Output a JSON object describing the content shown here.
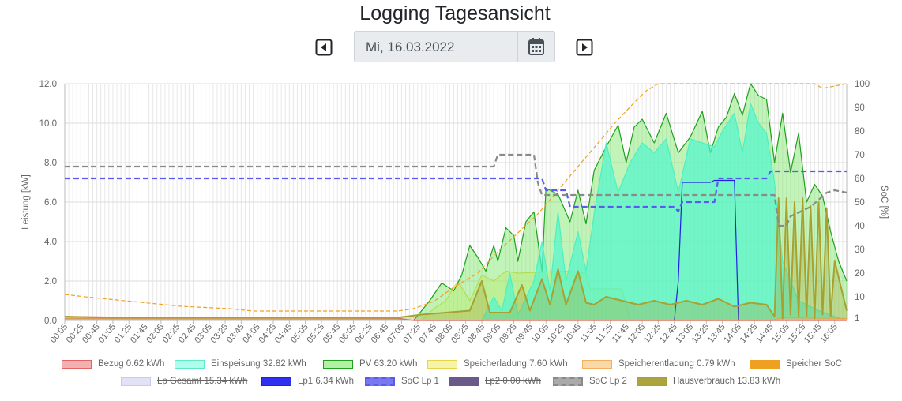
{
  "page": {
    "title": "Logging Tagesansicht"
  },
  "date_nav": {
    "date_value": "Mi, 16.03.2022",
    "prev_icon": "caret-left-square-icon",
    "next_icon": "caret-right-square-icon",
    "calendar_icon": "calendar-icon"
  },
  "chart_data": {
    "type": "area",
    "ylabel": "Leistung [kW]",
    "ylabel_right": "SoC [%]",
    "ylim": [
      0,
      12
    ],
    "ylim_right": [
      0,
      100
    ],
    "yticks": [
      "0.0",
      "2.0",
      "4.0",
      "6.0",
      "8.0",
      "10.0",
      "12.0"
    ],
    "yticks_right": [
      "1",
      "10",
      "20",
      "30",
      "40",
      "50",
      "60",
      "70",
      "80",
      "90",
      "100"
    ],
    "xticks": [
      "00:05",
      "00:25",
      "00:45",
      "01:05",
      "01:25",
      "01:45",
      "02:05",
      "02:25",
      "02:45",
      "03:05",
      "03:25",
      "03:45",
      "04:05",
      "04:25",
      "04:45",
      "05:05",
      "05:25",
      "05:45",
      "06:05",
      "06:25",
      "06:45",
      "07:05",
      "07:25",
      "07:45",
      "08:05",
      "08:25",
      "08:45",
      "09:05",
      "09:25",
      "09:45",
      "10:05",
      "10:25",
      "10:45",
      "11:05",
      "11:25",
      "11:45",
      "12:05",
      "12:25",
      "12:45",
      "13:05",
      "13:25",
      "13:45",
      "14:05",
      "14:25",
      "14:45",
      "15:05",
      "15:25",
      "15:45",
      "16:05"
    ],
    "grid": true,
    "legend_position": "bottom",
    "series": [
      {
        "name": "Bezug 0.62 kWh",
        "color": "#e06666",
        "axis": "left",
        "points": [
          [
            "00:05",
            0.2
          ],
          [
            "02:00",
            0.15
          ],
          [
            "04:00",
            0.15
          ],
          [
            "07:00",
            0.12
          ],
          [
            "07:20",
            0.0
          ],
          [
            "16:20",
            0.0
          ]
        ]
      },
      {
        "name": "Einspeisung 32.82 kWh",
        "color": "#4df0c0",
        "axis": "left",
        "points": [
          [
            "07:35",
            0.0
          ],
          [
            "08:45",
            0.0
          ],
          [
            "09:00",
            1.2
          ],
          [
            "09:10",
            0.5
          ],
          [
            "09:20",
            2.4
          ],
          [
            "09:30",
            0.3
          ],
          [
            "09:50",
            2.0
          ],
          [
            "10:00",
            4.0
          ],
          [
            "10:10",
            1.5
          ],
          [
            "10:20",
            5.5
          ],
          [
            "10:30",
            2.0
          ],
          [
            "10:45",
            4.5
          ],
          [
            "10:55",
            2.5
          ],
          [
            "11:05",
            5.4
          ],
          [
            "11:20",
            9.0
          ],
          [
            "11:35",
            6.5
          ],
          [
            "11:50",
            8.0
          ],
          [
            "12:05",
            9.0
          ],
          [
            "12:20",
            8.5
          ],
          [
            "12:35",
            9.2
          ],
          [
            "12:50",
            6.5
          ],
          [
            "13:05",
            9.2
          ],
          [
            "13:20",
            9.0
          ],
          [
            "13:35",
            8.8
          ],
          [
            "13:45",
            9.6
          ],
          [
            "14:00",
            10.5
          ],
          [
            "14:10",
            8.5
          ],
          [
            "14:20",
            11.0
          ],
          [
            "14:30",
            10.0
          ],
          [
            "14:40",
            9.5
          ],
          [
            "14:50",
            7.0
          ],
          [
            "15:00",
            3.0
          ],
          [
            "15:20",
            1.0
          ],
          [
            "15:45",
            0.5
          ],
          [
            "16:05",
            0.2
          ],
          [
            "16:20",
            0.0
          ]
        ]
      },
      {
        "name": "PV 63.20 kWh",
        "color": "#1ea01e",
        "axis": "left",
        "points": [
          [
            "07:20",
            0.0
          ],
          [
            "07:40",
            1.0
          ],
          [
            "07:55",
            1.9
          ],
          [
            "08:10",
            1.5
          ],
          [
            "08:20",
            2.3
          ],
          [
            "08:30",
            3.8
          ],
          [
            "08:40",
            3.2
          ],
          [
            "08:50",
            2.5
          ],
          [
            "09:00",
            3.8
          ],
          [
            "09:05",
            3.0
          ],
          [
            "09:15",
            4.7
          ],
          [
            "09:25",
            4.3
          ],
          [
            "09:30",
            3.0
          ],
          [
            "09:40",
            5.0
          ],
          [
            "09:50",
            5.5
          ],
          [
            "10:00",
            2.5
          ],
          [
            "10:05",
            6.7
          ],
          [
            "10:10",
            6.6
          ],
          [
            "10:20",
            6.4
          ],
          [
            "10:35",
            5.0
          ],
          [
            "10:45",
            6.6
          ],
          [
            "10:55",
            4.9
          ],
          [
            "11:05",
            7.6
          ],
          [
            "11:20",
            8.8
          ],
          [
            "11:35",
            9.9
          ],
          [
            "11:45",
            8.0
          ],
          [
            "11:55",
            9.8
          ],
          [
            "12:05",
            10.2
          ],
          [
            "12:20",
            9.0
          ],
          [
            "12:35",
            10.5
          ],
          [
            "12:50",
            8.5
          ],
          [
            "13:05",
            9.3
          ],
          [
            "13:20",
            10.6
          ],
          [
            "13:30",
            8.5
          ],
          [
            "13:40",
            9.8
          ],
          [
            "13:50",
            10.3
          ],
          [
            "14:00",
            11.5
          ],
          [
            "14:10",
            10.4
          ],
          [
            "14:20",
            12.0
          ],
          [
            "14:30",
            11.4
          ],
          [
            "14:40",
            11.2
          ],
          [
            "14:50",
            8.0
          ],
          [
            "15:00",
            10.5
          ],
          [
            "15:10",
            7.5
          ],
          [
            "15:20",
            9.5
          ],
          [
            "15:30",
            6.0
          ],
          [
            "15:40",
            6.9
          ],
          [
            "15:50",
            6.3
          ],
          [
            "16:00",
            4.5
          ],
          [
            "16:10",
            3.0
          ],
          [
            "16:20",
            2.0
          ]
        ]
      },
      {
        "name": "Speicherladung 7.60 kWh",
        "color": "#e6d44d",
        "axis": "left",
        "points": [
          [
            "07:30",
            0.0
          ],
          [
            "07:45",
            0.6
          ],
          [
            "08:00",
            1.0
          ],
          [
            "08:15",
            2.0
          ],
          [
            "08:30",
            1.0
          ],
          [
            "08:45",
            2.3
          ],
          [
            "09:00",
            2.0
          ],
          [
            "09:15",
            2.5
          ],
          [
            "09:30",
            2.4
          ],
          [
            "10:30",
            2.5
          ],
          [
            "10:55",
            2.4
          ],
          [
            "11:00",
            1.6
          ],
          [
            "11:40",
            1.6
          ],
          [
            "11:50",
            0.0
          ],
          [
            "16:20",
            0.0
          ]
        ]
      },
      {
        "name": "Speicherentladung 0.79 kWh",
        "color": "#f0b060",
        "axis": "left",
        "points": [
          [
            "00:05",
            0.1
          ],
          [
            "07:00",
            0.08
          ],
          [
            "07:20",
            0.0
          ],
          [
            "14:45",
            0.0
          ],
          [
            "15:00",
            0.15
          ],
          [
            "16:20",
            0.1
          ]
        ]
      },
      {
        "name": "Speicher SoC",
        "color": "#f0a020",
        "axis": "right",
        "dashed": true,
        "points": [
          [
            "00:05",
            11
          ],
          [
            "00:30",
            10
          ],
          [
            "01:30",
            8
          ],
          [
            "02:30",
            6
          ],
          [
            "03:30",
            5
          ],
          [
            "04:00",
            4
          ],
          [
            "07:00",
            4
          ],
          [
            "07:20",
            5
          ],
          [
            "07:45",
            8
          ],
          [
            "08:10",
            14
          ],
          [
            "08:40",
            20
          ],
          [
            "09:05",
            29
          ],
          [
            "09:30",
            37
          ],
          [
            "09:55",
            45
          ],
          [
            "10:20",
            55
          ],
          [
            "10:45",
            65
          ],
          [
            "11:05",
            73
          ],
          [
            "11:30",
            83
          ],
          [
            "11:55",
            92
          ],
          [
            "12:10",
            97
          ],
          [
            "12:25",
            100
          ],
          [
            "15:40",
            100
          ],
          [
            "15:50",
            98
          ],
          [
            "16:20",
            100
          ]
        ]
      },
      {
        "name": "Lp Gesamt 15.34 kWh",
        "color": "#c8c8f0",
        "axis": "left",
        "hidden": true,
        "points": []
      },
      {
        "name": "Lp1 6.34 kWh",
        "color": "#2020e0",
        "axis": "left",
        "points": [
          [
            "12:45",
            0.0
          ],
          [
            "12:50",
            2.0
          ],
          [
            "12:55",
            7.0
          ],
          [
            "13:30",
            7.0
          ],
          [
            "13:35",
            7.1
          ],
          [
            "14:00",
            7.1
          ],
          [
            "14:05",
            0.0
          ]
        ]
      },
      {
        "name": "SoC Lp 1",
        "color": "#5a5af0",
        "axis": "right",
        "dashed": true,
        "points": [
          [
            "00:05",
            60
          ],
          [
            "10:00",
            60
          ],
          [
            "10:05",
            55
          ],
          [
            "10:30",
            55
          ],
          [
            "10:35",
            48
          ],
          [
            "12:45",
            48
          ],
          [
            "12:50",
            46
          ],
          [
            "12:55",
            50
          ],
          [
            "13:35",
            50
          ],
          [
            "13:40",
            60
          ],
          [
            "14:40",
            60
          ],
          [
            "14:45",
            63
          ],
          [
            "16:20",
            63
          ]
        ]
      },
      {
        "name": "Lp2 0.00 kWh",
        "color": "#6a5a8a",
        "axis": "left",
        "hidden": true,
        "points": []
      },
      {
        "name": "SoC Lp 2",
        "color": "#8a8a8a",
        "axis": "right",
        "dashed": true,
        "points": [
          [
            "00:05",
            65
          ],
          [
            "09:00",
            65
          ],
          [
            "09:05",
            70
          ],
          [
            "09:50",
            70
          ],
          [
            "09:55",
            58
          ],
          [
            "10:00",
            53
          ],
          [
            "14:50",
            53
          ],
          [
            "14:55",
            40
          ],
          [
            "15:05",
            40
          ],
          [
            "15:10",
            44
          ],
          [
            "15:35",
            48
          ],
          [
            "15:55",
            54
          ],
          [
            "16:05",
            55
          ],
          [
            "16:20",
            54
          ]
        ]
      },
      {
        "name": "Hausverbrauch 13.83 kWh",
        "color": "#a8a030",
        "axis": "left",
        "points": [
          [
            "00:05",
            0.2
          ],
          [
            "01:00",
            0.15
          ],
          [
            "07:00",
            0.15
          ],
          [
            "07:30",
            0.3
          ],
          [
            "08:00",
            0.4
          ],
          [
            "08:30",
            0.5
          ],
          [
            "08:45",
            2.0
          ],
          [
            "08:55",
            0.4
          ],
          [
            "09:20",
            0.4
          ],
          [
            "09:35",
            1.8
          ],
          [
            "09:45",
            0.5
          ],
          [
            "10:00",
            2.1
          ],
          [
            "10:10",
            0.8
          ],
          [
            "10:20",
            2.6
          ],
          [
            "10:30",
            0.8
          ],
          [
            "10:45",
            2.5
          ],
          [
            "10:55",
            0.9
          ],
          [
            "11:05",
            0.8
          ],
          [
            "11:20",
            1.2
          ],
          [
            "11:40",
            1.0
          ],
          [
            "12:00",
            0.8
          ],
          [
            "12:20",
            1.0
          ],
          [
            "12:40",
            0.8
          ],
          [
            "13:00",
            1.0
          ],
          [
            "13:20",
            0.8
          ],
          [
            "13:40",
            1.1
          ],
          [
            "14:00",
            0.7
          ],
          [
            "14:20",
            0.9
          ],
          [
            "14:40",
            0.8
          ],
          [
            "14:50",
            0.2
          ],
          [
            "14:55",
            6.2
          ],
          [
            "15:00",
            0.1
          ],
          [
            "15:05",
            6.2
          ],
          [
            "15:10",
            0.3
          ],
          [
            "15:15",
            6.0
          ],
          [
            "15:20",
            0.2
          ],
          [
            "15:25",
            6.2
          ],
          [
            "15:30",
            0.2
          ],
          [
            "15:35",
            5.8
          ],
          [
            "15:40",
            0.1
          ],
          [
            "15:45",
            6.0
          ],
          [
            "15:50",
            0.3
          ],
          [
            "15:55",
            5.7
          ],
          [
            "16:00",
            0.2
          ],
          [
            "16:05",
            3.0
          ],
          [
            "16:20",
            0.5
          ]
        ]
      }
    ]
  },
  "legend": {
    "row1": [
      {
        "label": "Bezug 0.62 kWh",
        "fill": "#f4b0b0",
        "stroke": "#e06666"
      },
      {
        "label": "Einspeisung 32.82 kWh",
        "fill": "#aefcec",
        "stroke": "#60e8c8"
      },
      {
        "label": "PV 63.20 kWh",
        "fill": "#b4f0a4",
        "stroke": "#1ea01e"
      },
      {
        "label": "Speicherladung 7.60 kWh",
        "fill": "#f6f4a6",
        "stroke": "#e6d44d"
      },
      {
        "label": "Speicherentladung 0.79 kWh",
        "fill": "#fad9a8",
        "stroke": "#f0b060"
      },
      {
        "label": "Speicher SoC",
        "fill": "#f0a020",
        "stroke": "#f0a020"
      }
    ],
    "row2": [
      {
        "label": "Lp Gesamt 15.34 kWh",
        "fill": "#e2e2f6",
        "stroke": "#c8c8f0",
        "hidden": true
      },
      {
        "label": "Lp1 6.34 kWh",
        "fill": "#3030f0",
        "stroke": "#2020e0"
      },
      {
        "label": "SoC Lp 1",
        "fill": "#7878f0",
        "stroke": "#5a5af0",
        "dashed": true
      },
      {
        "label": "Lp2 0.00 kWh",
        "fill": "#6a5a8a",
        "stroke": "#6a5a8a",
        "hidden": true
      },
      {
        "label": "SoC Lp 2",
        "fill": "#aaaaaa",
        "stroke": "#8a8a8a",
        "dashed": true
      },
      {
        "label": "Hausverbrauch 13.83 kWh",
        "fill": "#aca43c",
        "stroke": "#a8a030"
      }
    ]
  }
}
